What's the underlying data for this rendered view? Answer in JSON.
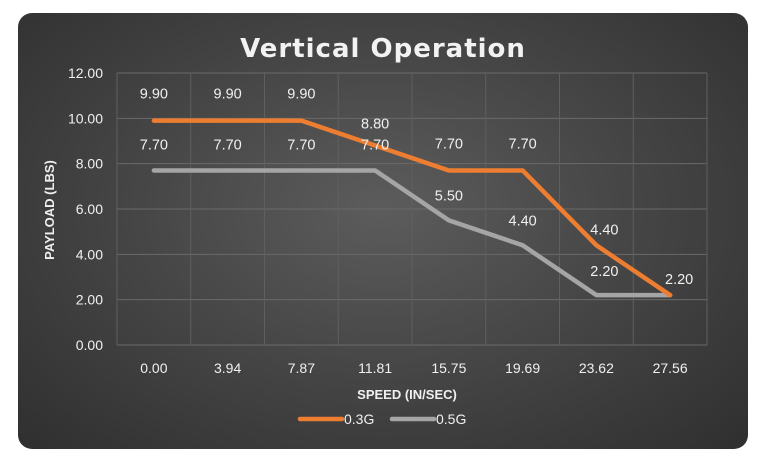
{
  "chart_data": {
    "type": "line",
    "title": "Vertical Operation",
    "xlabel": "SPEED (IN/SEC)",
    "ylabel": "PAYLOAD (LBS)",
    "categories": [
      "0.00",
      "3.94",
      "7.87",
      "11.81",
      "15.75",
      "19.69",
      "23.62",
      "27.56"
    ],
    "y_ticks": [
      "0.00",
      "2.00",
      "4.00",
      "6.00",
      "8.00",
      "10.00",
      "12.00"
    ],
    "ylim": [
      0,
      12
    ],
    "grid": true,
    "legend_position": "bottom",
    "series": [
      {
        "name": "0.3G",
        "color": "#ed7d31",
        "values": [
          9.9,
          9.9,
          9.9,
          8.8,
          7.7,
          7.7,
          4.4,
          2.2
        ],
        "labels": [
          "9.90",
          "9.90",
          "9.90",
          "8.80",
          "7.70",
          "7.70",
          "4.40",
          "2.20"
        ]
      },
      {
        "name": "0.5G",
        "color": "#a5a5a5",
        "values": [
          7.7,
          7.7,
          7.7,
          7.7,
          5.5,
          4.4,
          2.2,
          2.2
        ],
        "labels": [
          "7.70",
          "7.70",
          "7.70",
          "7.70",
          "5.50",
          "4.40",
          "2.20",
          ""
        ]
      }
    ]
  }
}
